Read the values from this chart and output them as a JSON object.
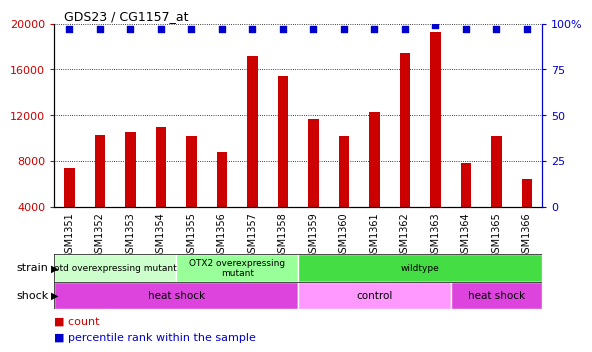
{
  "title": "GDS23 / CG1157_at",
  "samples": [
    "GSM1351",
    "GSM1352",
    "GSM1353",
    "GSM1354",
    "GSM1355",
    "GSM1356",
    "GSM1357",
    "GSM1358",
    "GSM1359",
    "GSM1360",
    "GSM1361",
    "GSM1362",
    "GSM1363",
    "GSM1364",
    "GSM1365",
    "GSM1366"
  ],
  "counts": [
    7400,
    10300,
    10500,
    11000,
    10200,
    8800,
    17200,
    15400,
    11700,
    10200,
    12300,
    17400,
    19300,
    7800,
    10200,
    6400
  ],
  "percentile_rank": [
    97,
    97,
    97,
    97,
    97,
    97,
    97,
    97,
    97,
    97,
    97,
    97,
    99,
    97,
    97,
    97
  ],
  "bar_color": "#cc0000",
  "dot_color": "#0000cc",
  "ylim_left": [
    4000,
    20000
  ],
  "ylim_right": [
    0,
    100
  ],
  "yticks_left": [
    4000,
    8000,
    12000,
    16000,
    20000
  ],
  "yticks_right": [
    0,
    25,
    50,
    75,
    100
  ],
  "yticklabels_right": [
    "0",
    "25",
    "50",
    "75",
    "100%"
  ],
  "strain_groups": [
    {
      "label": "otd overexpressing mutant",
      "start": 0,
      "end": 4,
      "color": "#ccffcc"
    },
    {
      "label": "OTX2 overexpressing\nmutant",
      "start": 4,
      "end": 8,
      "color": "#99ff99"
    },
    {
      "label": "wildtype",
      "start": 8,
      "end": 16,
      "color": "#44dd44"
    }
  ],
  "shock_groups": [
    {
      "label": "heat shock",
      "start": 0,
      "end": 8,
      "color": "#dd44dd"
    },
    {
      "label": "control",
      "start": 8,
      "end": 13,
      "color": "#ff99ff"
    },
    {
      "label": "heat shock",
      "start": 13,
      "end": 16,
      "color": "#dd44dd"
    }
  ],
  "legend_items": [
    {
      "color": "#cc0000",
      "label": "count"
    },
    {
      "color": "#0000cc",
      "label": "percentile rank within the sample"
    }
  ],
  "plot_bg": "#ffffff"
}
